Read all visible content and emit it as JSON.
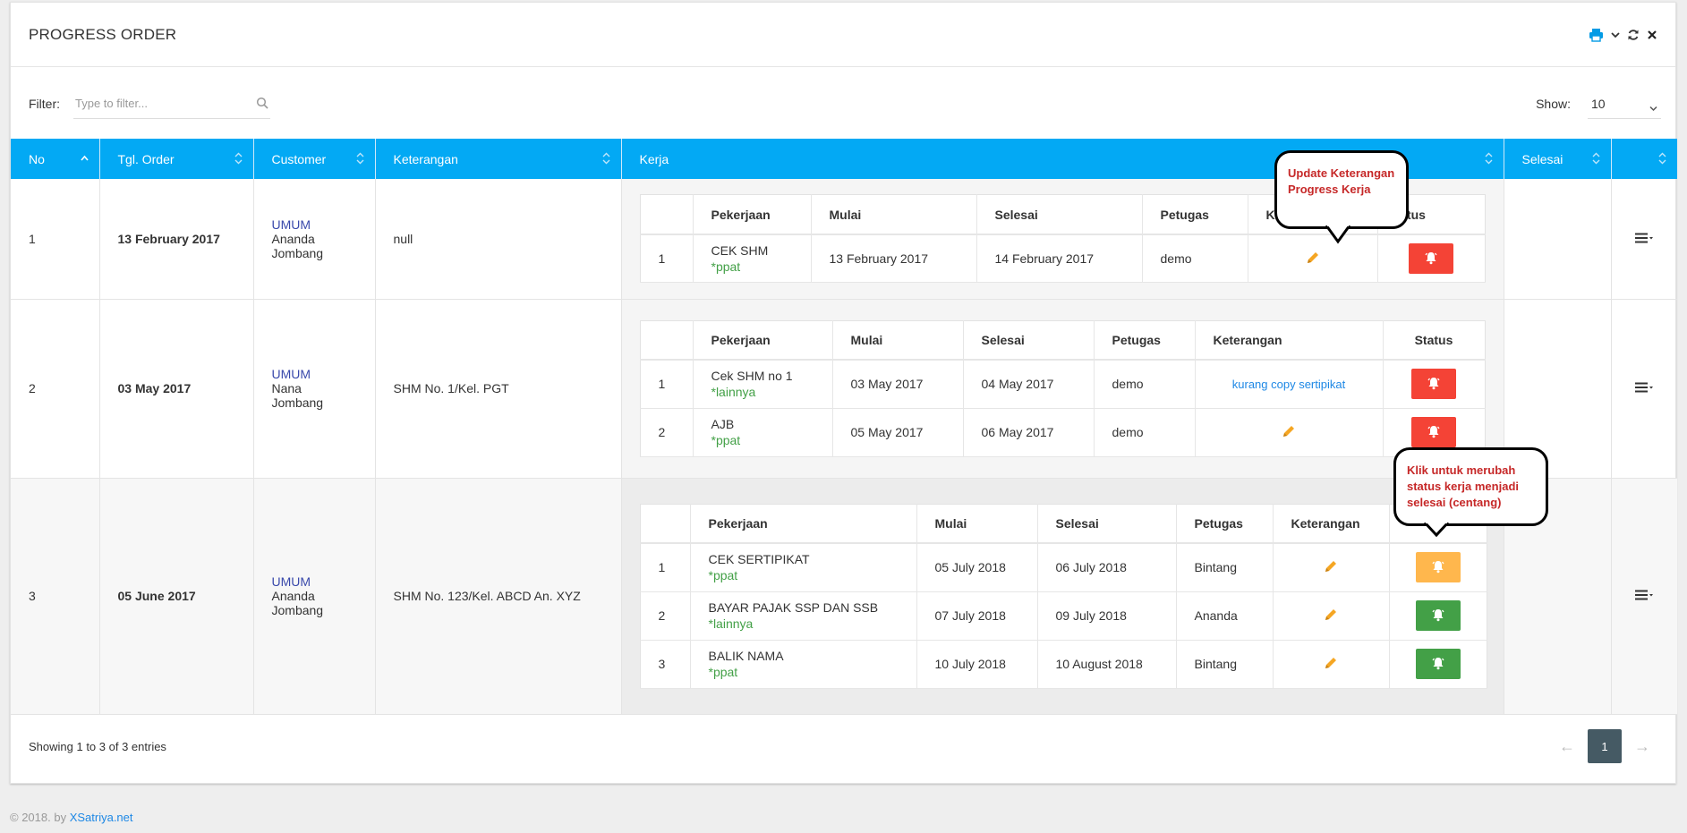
{
  "panel": {
    "title": "PROGRESS ORDER"
  },
  "filter": {
    "label": "Filter:",
    "placeholder": "Type to filter...",
    "value": ""
  },
  "show": {
    "label": "Show:",
    "value": "10"
  },
  "columns": [
    "No",
    "Tgl. Order",
    "Customer",
    "Keterangan",
    "Kerja",
    "Selesai",
    ""
  ],
  "inner_columns": [
    "Pekerjaan",
    "Mulai",
    "Selesai",
    "Petugas",
    "Keterangan",
    "Status"
  ],
  "inner_columns_row1": [
    "Pekerjaan",
    "Mulai",
    "Selesai",
    "Petugas",
    "K",
    "tatus"
  ],
  "orders": [
    {
      "no": "1",
      "date": "13 February 2017",
      "cust_type": "UMUM",
      "cust_name": "Ananda",
      "cust_city": "Jombang",
      "keterangan": "null",
      "tasks": [
        {
          "no": "1",
          "name": "CEK SHM",
          "cat": "*ppat",
          "start": "13 February 2017",
          "end": "14 February 2017",
          "officer": "demo",
          "note": "",
          "status": "red"
        }
      ]
    },
    {
      "no": "2",
      "date": "03 May 2017",
      "cust_type": "UMUM",
      "cust_name": "Nana",
      "cust_city": "Jombang",
      "keterangan": "SHM No. 1/Kel. PGT",
      "tasks": [
        {
          "no": "1",
          "name": "Cek SHM no 1",
          "cat": "*lainnya",
          "start": "03 May 2017",
          "end": "04 May 2017",
          "officer": "demo",
          "note": "kurang copy sertipikat",
          "status": "red"
        },
        {
          "no": "2",
          "name": "AJB",
          "cat": "*ppat",
          "start": "05 May 2017",
          "end": "06 May 2017",
          "officer": "demo",
          "note": "",
          "status": "red"
        }
      ]
    },
    {
      "no": "3",
      "date": "05 June 2017",
      "cust_type": "UMUM",
      "cust_name": "Ananda",
      "cust_city": "Jombang",
      "keterangan": "SHM No. 123/Kel. ABCD An. XYZ",
      "tasks": [
        {
          "no": "1",
          "name": "CEK SERTIPIKAT",
          "cat": "*ppat",
          "start": "05 July 2018",
          "end": "06 July 2018",
          "officer": "Bintang",
          "note": "",
          "status": "orange"
        },
        {
          "no": "2",
          "name": "BAYAR PAJAK SSP DAN SSB",
          "cat": "*lainnya",
          "start": "07 July 2018",
          "end": "09 July 2018",
          "officer": "Ananda",
          "note": "",
          "status": "green"
        },
        {
          "no": "3",
          "name": "BALIK NAMA",
          "cat": "*ppat",
          "start": "10 July 2018",
          "end": "10 August 2018",
          "officer": "Bintang",
          "note": "",
          "status": "green"
        }
      ]
    }
  ],
  "callouts": {
    "update": "Update Keterangan Progress Kerja",
    "status": "Klik untuk merubah status kerja menjadi selesai (centang)"
  },
  "footer": {
    "entries": "Showing 1 to 3 of 3 entries",
    "page": "1",
    "prev": "←",
    "next": "→"
  },
  "copyright": {
    "text": "© 2018. by ",
    "link": "XSatriya.net"
  },
  "colors": {
    "header": "#03a9f4",
    "red": "#f44336",
    "orange": "#ffb74d",
    "green": "#43a047",
    "edit": "#f5a623"
  },
  "icons": [
    "printer-icon",
    "chevron-down-icon",
    "refresh-icon",
    "close-icon",
    "search-icon",
    "sort-icon",
    "pencil-icon",
    "bell-icon",
    "menu-icon"
  ]
}
